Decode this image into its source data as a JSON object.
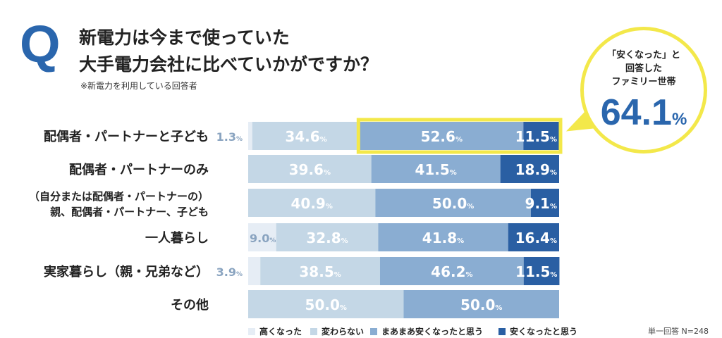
{
  "header": {
    "q": "Q",
    "title_line1": "新電力は今まで使っていた",
    "title_line2": "大手電力会社に比べていかがですか？",
    "note": "※新電力を利用している回答者"
  },
  "callout": {
    "line1": "「安くなった」と",
    "line2": "回答した",
    "line3": "ファミリー世帯",
    "value": "64.1",
    "unit": "%"
  },
  "footer": "単一回答  N=248",
  "chart_data": {
    "type": "bar",
    "stacked": true,
    "orientation": "horizontal",
    "xlim": [
      0,
      100
    ],
    "categories": [
      "配偶者・パートナーと子ども",
      "配偶者・パートナーのみ",
      "（自分または配偶者・パートナーの）\n親、配偶者・パートナー、子ども",
      "一人暮らし",
      "実家暮らし（親・兄弟など）",
      "その他"
    ],
    "category_lines": [
      [
        "配偶者・パートナーと子ども"
      ],
      [
        "配偶者・パートナーのみ"
      ],
      [
        "（自分または配偶者・パートナーの）",
        "親、配偶者・パートナー、子ども"
      ],
      [
        "一人暮らし"
      ],
      [
        "実家暮らし（親・兄弟など）"
      ],
      [
        "その他"
      ]
    ],
    "series": [
      {
        "name": "高くなった",
        "color": "#e6edf5",
        "values": [
          1.3,
          0,
          0,
          9.0,
          3.9,
          0
        ]
      },
      {
        "name": "変わらない",
        "color": "#c4d7e6",
        "values": [
          34.6,
          39.6,
          40.9,
          32.8,
          38.5,
          50.0
        ]
      },
      {
        "name": "まあまあ安くなったと思う",
        "color": "#8aadd2",
        "values": [
          52.6,
          41.5,
          50.0,
          41.8,
          46.2,
          50.0
        ]
      },
      {
        "name": "安くなったと思う",
        "color": "#2a5fa3",
        "values": [
          11.5,
          18.9,
          9.1,
          16.4,
          11.5,
          0
        ]
      }
    ],
    "highlight": {
      "category": "配偶者・パートナーと子ども",
      "series": [
        "まあまあ安くなったと思う",
        "安くなったと思う"
      ],
      "color": "#f3e84a"
    },
    "legend": "bottom"
  }
}
